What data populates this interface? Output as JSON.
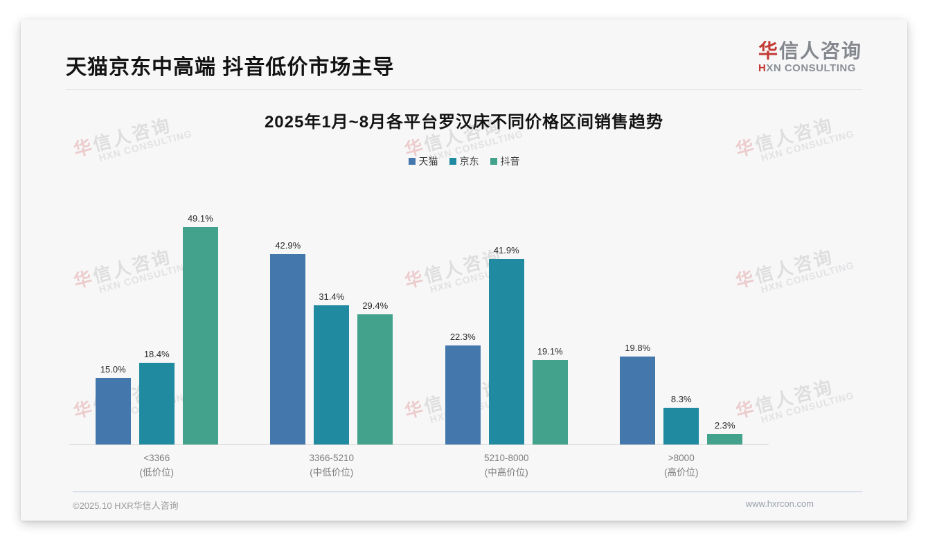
{
  "slide": {
    "title": "天猫京东中高端 抖音低价市场主导",
    "logo": {
      "brand_cn_accent": "华",
      "brand_cn_rest": "信人咨询",
      "brand_en_accent": "H",
      "brand_en_rest": "XN CONSULTING"
    },
    "watermark": {
      "cn_accent": "华",
      "cn_rest": "信人咨询",
      "en": "HXN CONSULTING"
    },
    "footer": {
      "copyright": "©2025.10 HXR华信人咨询",
      "website": "www.hxrcon.com"
    }
  },
  "chart_data": {
    "type": "bar",
    "title": "2025年1月~8月各平台罗汉床不同价格区间销售趋势",
    "categories": [
      {
        "range": "<3366",
        "tier": "(低价位)"
      },
      {
        "range": "3366-5210",
        "tier": "(中低价位)"
      },
      {
        "range": "5210-8000",
        "tier": "(中高价位)"
      },
      {
        "range": ">8000",
        "tier": "(高价位)"
      }
    ],
    "series": [
      {
        "name": "天猫",
        "color": "#4478ac",
        "values": [
          15.0,
          42.9,
          22.3,
          19.8
        ]
      },
      {
        "name": "京东",
        "color": "#1f8aa0",
        "values": [
          18.4,
          31.4,
          41.9,
          8.3
        ]
      },
      {
        "name": "抖音",
        "color": "#42a28c",
        "values": [
          49.1,
          29.4,
          19.1,
          2.3
        ]
      }
    ],
    "value_suffix": "%",
    "value_decimals": 1,
    "xlabel": "",
    "ylabel": "",
    "ylim": [
      0,
      52
    ],
    "legend_position": "top",
    "grid": false
  }
}
